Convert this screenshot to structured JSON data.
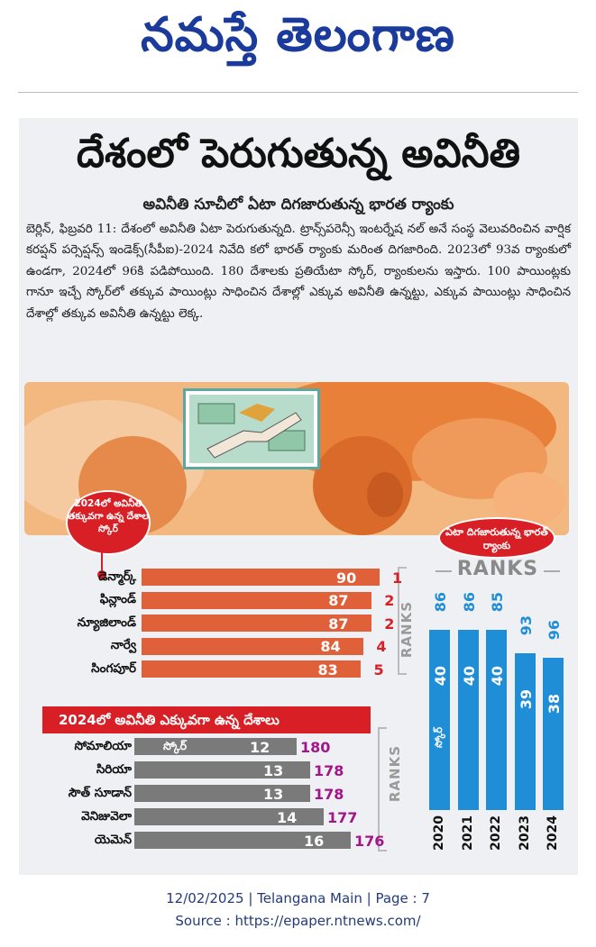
{
  "masthead": {
    "title": "నమస్తే తెలంగాణ"
  },
  "article": {
    "headline": "దేశంలో పెరుగుతున్న అవినీతి",
    "subhead": "అవినీతి సూచీలో ఏటా దిగజారుతున్న భారత ర్యాంకు",
    "body": "బెర్లిన్, ఫిబ్రవరి 11: దేశంలో అవినీతి ఏటా పెరుగుతున్నది. ట్రాన్స్‌పరెన్సీ ఇంటర్నేష నల్ అనే సంస్థ వెలువరించిన వార్షిక కరప్షన్ పర్సెప్షన్స్ ఇండెక్స్(సీపీఐ)-2024 నివేది కలో భారత్ ర్యాంకు మరింత దిగజారింది. 2023లో 93వ ర్యాంకులో ఉండగా, 2024లో 96కి పడిపోయింది. 180 దేశాలకు ప్రతియేటా స్కోర్, ర్యాంకులను ఇస్తారు. 100 పాయింట్లకు గానూ ఇచ్చే స్కోర్‌లో తక్కువ పాయింట్లు సాధించిన దేశాల్లో ఎక్కువ అవినీతి ఉన్నట్టు, ఎక్కువ పాయింట్లు సాధించిన దేశాల్లో తక్కువ అవినీతి ఉన్నట్టు లెక్క."
  },
  "callouts": {
    "least_corrupt": "2024లో అవినీతి తక్కువగా ఉన్న దేశాల స్కోర్",
    "india_rank": "ఏటా దిగజారుతున్న భారత్ ర్యాంకు",
    "most_corrupt_header": "2024లో అవినీతి ఎక్కువగా ఉన్న దేశాలు",
    "ranks_heading": "RANKS",
    "ranks_vertical_1": "RANKS",
    "ranks_vertical_2": "RANKS",
    "score_label": "స్కోర్",
    "score_col_label": "స్కోర్"
  },
  "colors": {
    "top_bar": "#e0603a",
    "bottom_bar": "#7a7a7a",
    "rank_top": "#d91f26",
    "rank_bottom": "#a3168a",
    "india_col": "#1f8ed6",
    "accent_red": "#d91f26"
  },
  "chart_data": [
    {
      "type": "bar",
      "orientation": "horizontal",
      "title": "2024లో అవినీతి తక్కువగా ఉన్న దేశాల స్కోర్",
      "categories": [
        "డెన్మార్క్",
        "ఫిన్లాండ్",
        "న్యూజిలాండ్",
        "నార్వే",
        "సింగపూర్"
      ],
      "series": [
        {
          "name": "స్కోర్",
          "values": [
            90,
            87,
            87,
            84,
            83
          ]
        },
        {
          "name": "RANKS",
          "values": [
            1,
            2,
            2,
            4,
            5
          ]
        }
      ]
    },
    {
      "type": "bar",
      "orientation": "horizontal",
      "title": "2024లో అవినీతి ఎక్కువగా ఉన్న దేశాలు",
      "categories": [
        "సోమాలియా",
        "సిరియా",
        "సౌత్ సూడాన్",
        "వెనిజువెలా",
        "యెమెన్"
      ],
      "series": [
        {
          "name": "స్కోర్",
          "values": [
            12,
            13,
            13,
            14,
            16
          ]
        },
        {
          "name": "RANKS",
          "values": [
            180,
            178,
            178,
            177,
            176
          ]
        }
      ]
    },
    {
      "type": "bar",
      "orientation": "vertical",
      "title": "ఏటా దిగజారుతున్న భారత్ ర్యాంకు",
      "categories": [
        "2020",
        "2021",
        "2022",
        "2023",
        "2024"
      ],
      "series": [
        {
          "name": "స్కోర్",
          "values": [
            40,
            40,
            40,
            39,
            38
          ]
        },
        {
          "name": "RANKS",
          "values": [
            86,
            86,
            85,
            93,
            96
          ]
        }
      ]
    }
  ],
  "footer": {
    "date_line": "12/02/2025 | Telangana Main | Page : 7",
    "source_line": "Source : https://epaper.ntnews.com/"
  }
}
